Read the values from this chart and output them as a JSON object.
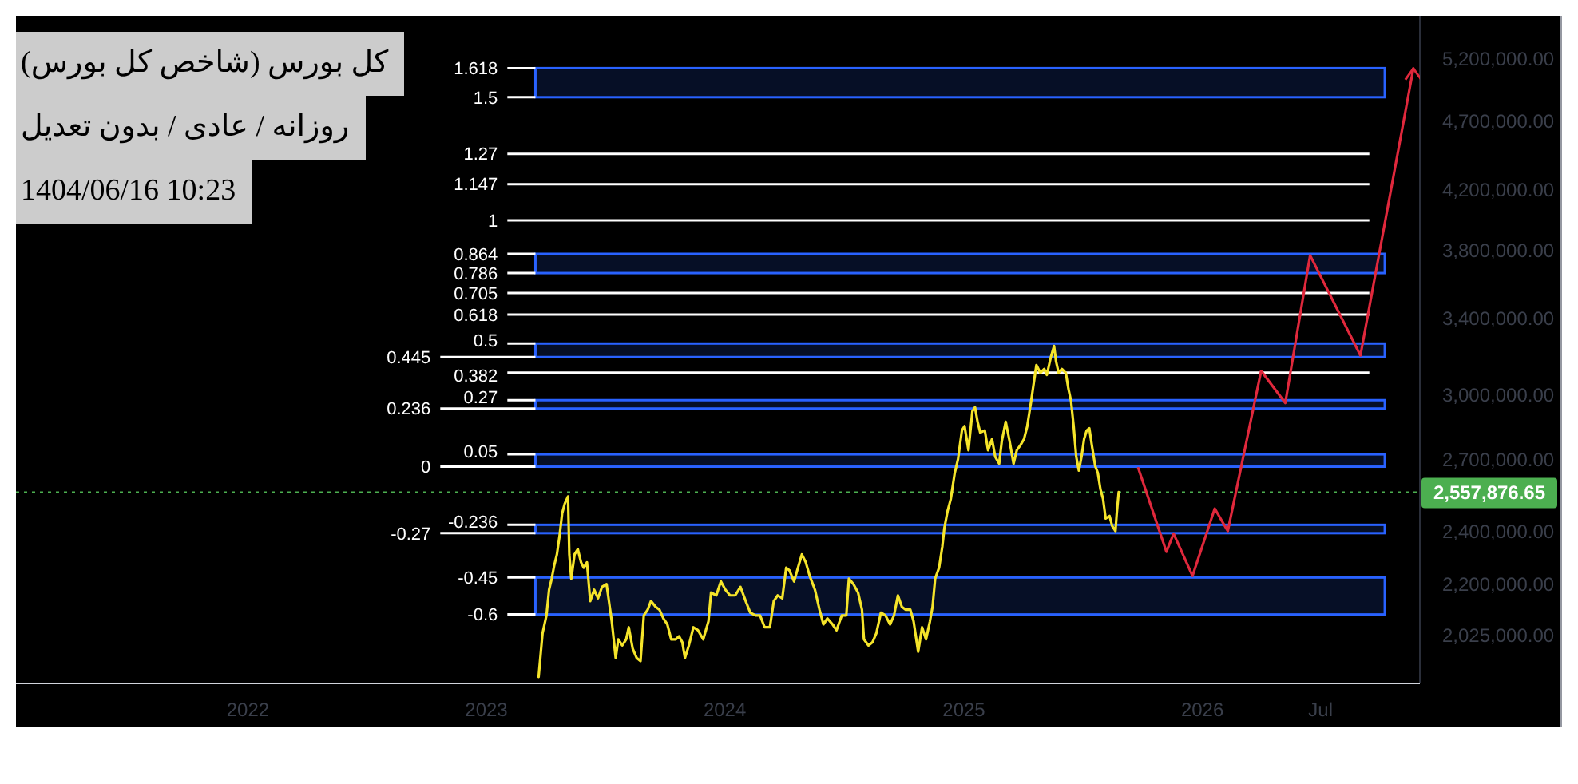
{
  "chart_data": {
    "type": "line",
    "title": "کل بورس (شاخص کل بورس)",
    "subtitle": "روزانه / عادی / بدون تعدیل",
    "annotations": [
      "1404/06/16 10:23"
    ],
    "xlim": [
      "2021-01-11",
      "2026-11-30"
    ],
    "xticks": [
      "2022",
      "2023",
      "2024",
      "2025",
      "2026",
      {
        "value": "2026-07",
        "label": "Jul"
      }
    ],
    "ylim": [
      1870000,
      5580000
    ],
    "log": true,
    "yticks": [
      {
        "value": 2025000,
        "label": "2,025,000.00"
      },
      {
        "value": 2200000,
        "label": "2,200,000.00"
      },
      {
        "value": 2400000,
        "label": "2,400,000.00"
      },
      {
        "value": 2700000,
        "label": "2,700,000.00"
      },
      {
        "value": 3000000,
        "label": "3,000,000.00"
      },
      {
        "value": 3400000,
        "label": "3,400,000.00"
      },
      {
        "value": 3800000,
        "label": "3,800,000.00"
      },
      {
        "value": 4200000,
        "label": "4,200,000.00"
      },
      {
        "value": 4700000,
        "label": "4,700,000.00"
      },
      {
        "value": 5200000,
        "label": "5,200,000.00"
      }
    ],
    "y2lim": [
      -0.88,
      1.83
    ],
    "series": [
      {
        "color": "#f5e42a",
        "x": [
          "2023-03-22",
          "2023-03-28",
          "2023-04-03",
          "2023-04-07",
          "2023-04-11",
          "2023-04-15",
          "2023-04-19",
          "2023-04-23",
          "2023-04-27",
          "2023-05-01",
          "2023-05-06",
          "2023-05-08",
          "2023-05-11",
          "2023-05-16",
          "2023-05-21",
          "2023-05-26",
          "2023-05-30",
          "2023-06-04",
          "2023-06-09",
          "2023-06-15",
          "2023-06-21",
          "2023-06-27",
          "2023-07-04",
          "2023-07-07",
          "2023-07-12",
          "2023-07-18",
          "2023-07-22",
          "2023-07-28",
          "2023-08-03",
          "2023-08-07",
          "2023-08-13",
          "2023-08-19",
          "2023-08-25",
          "2023-08-30",
          "2023-09-05",
          "2023-09-10",
          "2023-09-17",
          "2023-09-23",
          "2023-09-29",
          "2023-10-05",
          "2023-10-11",
          "2023-10-18",
          "2023-10-23",
          "2023-10-28",
          "2023-11-01",
          "2023-11-07",
          "2023-11-14",
          "2023-11-21",
          "2023-11-29",
          "2023-12-07",
          "2023-12-11",
          "2023-12-19",
          "2023-12-26",
          "2024-01-02",
          "2024-01-09",
          "2024-01-17",
          "2024-01-25",
          "2024-02-02",
          "2024-02-09",
          "2024-02-17",
          "2024-02-24",
          "2024-03-02",
          "2024-03-10",
          "2024-03-16",
          "2024-03-22",
          "2024-03-29",
          "2024-04-04",
          "2024-04-09",
          "2024-04-16",
          "2024-04-22",
          "2024-04-28",
          "2024-05-04",
          "2024-05-10",
          "2024-05-18",
          "2024-05-25",
          "2024-05-31",
          "2024-06-06",
          "2024-06-14",
          "2024-06-20",
          "2024-06-28",
          "2024-07-05",
          "2024-07-09",
          "2024-07-16",
          "2024-07-23",
          "2024-07-29",
          "2024-08-01",
          "2024-08-08",
          "2024-08-14",
          "2024-08-20",
          "2024-08-27",
          "2024-09-03",
          "2024-09-10",
          "2024-09-16",
          "2024-09-22",
          "2024-09-28",
          "2024-10-04",
          "2024-10-11",
          "2024-10-16",
          "2024-10-23",
          "2024-10-29",
          "2024-11-04",
          "2024-11-10",
          "2024-11-14",
          "2024-11-18",
          "2024-11-24",
          "2024-11-29",
          "2024-12-02",
          "2024-12-07",
          "2024-12-12",
          "2024-12-18",
          "2024-12-23",
          "2024-12-29",
          "2025-01-02",
          "2025-01-08",
          "2025-01-14",
          "2025-01-18",
          "2025-01-22",
          "2025-01-26",
          "2025-02-02",
          "2025-02-07",
          "2025-02-13",
          "2025-02-18",
          "2025-02-24",
          "2025-02-28",
          "2025-03-06",
          "2025-03-12",
          "2025-03-18",
          "2025-03-23",
          "2025-03-28",
          "2025-04-03",
          "2025-04-08",
          "2025-04-14",
          "2025-04-18",
          "2025-04-22",
          "2025-04-28",
          "2025-05-04",
          "2025-05-08",
          "2025-05-14",
          "2025-05-19",
          "2025-05-22",
          "2025-05-26",
          "2025-05-31",
          "2025-06-06",
          "2025-06-10",
          "2025-06-14",
          "2025-06-18",
          "2025-06-22",
          "2025-06-26",
          "2025-06-30",
          "2025-07-04",
          "2025-07-08",
          "2025-07-12",
          "2025-07-16",
          "2025-07-21",
          "2025-07-25",
          "2025-07-29",
          "2025-08-02",
          "2025-08-06",
          "2025-08-12",
          "2025-08-16",
          "2025-08-21",
          "2025-08-23",
          "2025-08-26"
        ],
        "values": [
          1890000,
          2030000,
          2090000,
          2180000,
          2220000,
          2270000,
          2310000,
          2380000,
          2470000,
          2510000,
          2540000,
          2310000,
          2220000,
          2310000,
          2330000,
          2280000,
          2260000,
          2280000,
          2140000,
          2180000,
          2150000,
          2190000,
          2200000,
          2150000,
          2070000,
          1950000,
          2010000,
          1990000,
          2010000,
          2050000,
          1980000,
          1950000,
          1940000,
          2090000,
          2110000,
          2140000,
          2120000,
          2110000,
          2080000,
          2060000,
          2010000,
          2010000,
          2020000,
          2000000,
          1950000,
          1990000,
          2050000,
          2040000,
          2010000,
          2070000,
          2170000,
          2160000,
          2210000,
          2180000,
          2160000,
          2160000,
          2190000,
          2140000,
          2100000,
          2090000,
          2090000,
          2050000,
          2050000,
          2140000,
          2160000,
          2150000,
          2260000,
          2250000,
          2210000,
          2260000,
          2310000,
          2280000,
          2230000,
          2180000,
          2110000,
          2060000,
          2080000,
          2060000,
          2040000,
          2090000,
          2090000,
          2220000,
          2200000,
          2170000,
          2110000,
          2010000,
          1990000,
          2000000,
          2030000,
          2100000,
          2090000,
          2060000,
          2090000,
          2160000,
          2120000,
          2110000,
          2110000,
          2070000,
          1970000,
          2050000,
          2010000,
          2070000,
          2120000,
          2220000,
          2260000,
          2340000,
          2410000,
          2480000,
          2530000,
          2640000,
          2700000,
          2830000,
          2850000,
          2740000,
          2920000,
          2940000,
          2870000,
          2820000,
          2830000,
          2740000,
          2790000,
          2710000,
          2680000,
          2780000,
          2870000,
          2780000,
          2680000,
          2740000,
          2760000,
          2790000,
          2850000,
          2970000,
          3060000,
          3150000,
          3110000,
          3130000,
          3100000,
          3190000,
          3250000,
          3170000,
          3110000,
          3130000,
          3110000,
          3030000,
          2970000,
          2850000,
          2710000,
          2650000,
          2710000,
          2790000,
          2830000,
          2840000,
          2760000,
          2670000,
          2640000,
          2570000,
          2530000,
          2450000,
          2460000,
          2420000,
          2400000,
          2470000,
          2557876.65
        ]
      },
      {
        "color": "#e0283c",
        "x": [
          "2025-09-25",
          "2025-11-07",
          "2025-11-18",
          "2025-12-17",
          "2026-01-20",
          "2026-02-09",
          "2026-04-01",
          "2026-05-08",
          "2026-06-15",
          "2026-08-31",
          "2026-11-20"
        ],
        "values": [
          2660000,
          2320000,
          2390000,
          2230000,
          2490000,
          2400000,
          3120000,
          2960000,
          3770000,
          3200000,
          5120000
        ]
      }
    ],
    "ref_lines": [
      {
        "axis": "y2",
        "value": 1.618,
        "label": "1.618",
        "color": "#ffffff"
      },
      {
        "axis": "y2",
        "value": 1.5,
        "label": "1.5",
        "color": "#ffffff"
      },
      {
        "axis": "y2",
        "value": 1.27,
        "label": "1.27",
        "color": "#ffffff"
      },
      {
        "axis": "y2",
        "value": 1.147,
        "label": "1.147",
        "color": "#ffffff"
      },
      {
        "axis": "y2",
        "value": 1,
        "label": "1",
        "color": "#ffffff"
      },
      {
        "axis": "y2",
        "value": 0.864,
        "label": "0.864",
        "color": "#ffffff"
      },
      {
        "axis": "y2",
        "value": 0.786,
        "label": "0.786",
        "color": "#ffffff"
      },
      {
        "axis": "y2",
        "value": 0.705,
        "label": "0.705",
        "color": "#ffffff"
      },
      {
        "axis": "y2",
        "value": 0.618,
        "label": "0.618",
        "color": "#ffffff"
      },
      {
        "axis": "y2",
        "value": 0.5,
        "label": "0.5",
        "color": "#ffffff"
      },
      {
        "axis": "y2",
        "value": 0.445,
        "label": "0.445",
        "color": "#ffffff"
      },
      {
        "axis": "y2",
        "value": 0.382,
        "label": "0.382",
        "color": "#ffffff"
      },
      {
        "axis": "y2",
        "value": 0.27,
        "label": "0.27",
        "color": "#ffffff"
      },
      {
        "axis": "y2",
        "value": 0.236,
        "label": "0.236",
        "color": "#ffffff"
      },
      {
        "axis": "y2",
        "value": 0.05,
        "label": "0.05",
        "color": "#ffffff"
      },
      {
        "axis": "y2",
        "value": 0,
        "label": "0",
        "color": "#ffffff"
      },
      {
        "axis": "y2",
        "value": -0.236,
        "label": "-0.236",
        "color": "#ffffff"
      },
      {
        "axis": "y2",
        "value": -0.27,
        "label": "-0.27",
        "color": "#ffffff"
      },
      {
        "axis": "y2",
        "value": -0.45,
        "label": "-0.45",
        "color": "#ffffff"
      },
      {
        "axis": "y2",
        "value": -0.6,
        "label": "-0.6",
        "color": "#ffffff"
      },
      {
        "axis": "y",
        "value": 2557876.65,
        "label": "2,557,876.65",
        "color": "#4caf50",
        "line_style": "dotted"
      }
    ],
    "bands": [
      {
        "axis": "y2",
        "from": 1.5,
        "to": 1.618,
        "color": "#2962ff"
      },
      {
        "axis": "y2",
        "from": 0.786,
        "to": 0.864,
        "color": "#2962ff"
      },
      {
        "axis": "y2",
        "from": 0.445,
        "to": 0.5,
        "color": "#2962ff"
      },
      {
        "axis": "y2",
        "from": 0.236,
        "to": 0.27,
        "color": "#2962ff"
      },
      {
        "axis": "y2",
        "from": 0,
        "to": 0.05,
        "color": "#2962ff"
      },
      {
        "axis": "y2",
        "from": -0.27,
        "to": -0.236,
        "color": "#2962ff"
      },
      {
        "axis": "y2",
        "from": -0.6,
        "to": -0.45,
        "color": "#2962ff"
      }
    ]
  }
}
